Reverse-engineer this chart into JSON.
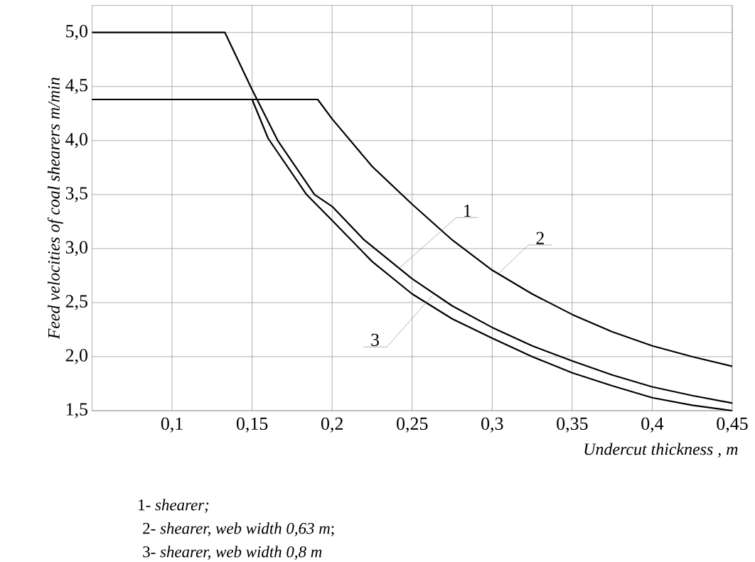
{
  "chart_data": {
    "type": "line",
    "xlabel": "Undercut thickness , m",
    "ylabel": "Feed velocities of coal shearers  m/min",
    "xlim": [
      0.05,
      0.45
    ],
    "ylim": [
      1.5,
      5.25
    ],
    "xticks": [
      {
        "value": 0.1,
        "label": "0,1"
      },
      {
        "value": 0.15,
        "label": "0,15"
      },
      {
        "value": 0.2,
        "label": "0,2"
      },
      {
        "value": 0.25,
        "label": "0,25"
      },
      {
        "value": 0.3,
        "label": "0,3"
      },
      {
        "value": 0.35,
        "label": "0,35"
      },
      {
        "value": 0.4,
        "label": "0,4"
      },
      {
        "value": 0.45,
        "label": "0,45"
      }
    ],
    "yticks": [
      {
        "value": 1.5,
        "label": "1,5"
      },
      {
        "value": 2.0,
        "label": "2,0"
      },
      {
        "value": 2.5,
        "label": "2,5"
      },
      {
        "value": 3.0,
        "label": "3,0"
      },
      {
        "value": 3.5,
        "label": "3,5"
      },
      {
        "value": 4.0,
        "label": "4,0"
      },
      {
        "value": 4.5,
        "label": "4,5"
      },
      {
        "value": 5.0,
        "label": "5,0"
      }
    ],
    "grid": true,
    "series": [
      {
        "color": "#000000",
        "x": [
          0.05,
          0.133,
          0.15,
          0.166,
          0.189,
          0.2,
          0.22,
          0.25,
          0.275,
          0.3,
          0.325,
          0.35,
          0.375,
          0.4,
          0.425,
          0.45
        ],
        "values": [
          5.0,
          5.0,
          4.47,
          4.0,
          3.5,
          3.39,
          3.08,
          2.72,
          2.47,
          2.27,
          2.1,
          1.96,
          1.83,
          1.72,
          1.64,
          1.57
        ]
      },
      {
        "color": "#000000",
        "x": [
          0.05,
          0.191,
          0.2,
          0.225,
          0.25,
          0.275,
          0.3,
          0.325,
          0.35,
          0.375,
          0.4,
          0.425,
          0.45
        ],
        "values": [
          4.38,
          4.38,
          4.2,
          3.76,
          3.41,
          3.08,
          2.8,
          2.58,
          2.39,
          2.23,
          2.1,
          2.0,
          1.91
        ]
      },
      {
        "color": "#000000",
        "x": [
          0.05,
          0.15,
          0.16,
          0.184,
          0.2,
          0.225,
          0.25,
          0.275,
          0.3,
          0.325,
          0.35,
          0.375,
          0.4,
          0.425,
          0.45
        ],
        "values": [
          4.38,
          4.38,
          4.02,
          3.5,
          3.26,
          2.88,
          2.58,
          2.35,
          2.17,
          2.0,
          1.85,
          1.73,
          1.62,
          1.55,
          1.5
        ]
      }
    ],
    "annotations": [
      {
        "text": "1",
        "x": 0.242,
        "y": 2.82
      },
      {
        "text": "2",
        "x": 0.304,
        "y": 2.77
      },
      {
        "text": "3",
        "x": 0.263,
        "y": 2.57
      },
      "1- *shearer;*",
      "2- *shearer, web width 0,63 m*;",
      "3- *shearer, web width 0,8 m*"
    ]
  }
}
